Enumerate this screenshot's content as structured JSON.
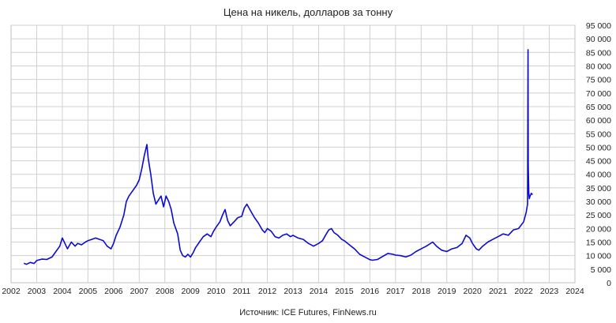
{
  "chart_data": {
    "type": "line",
    "title": "Цена на никель, долларов за тонну",
    "source": "Источник: ICE Futures, FinNews.ru",
    "xlabel": "",
    "ylabel": "",
    "xlim": [
      2002,
      2024
    ],
    "ylim": [
      0,
      95000
    ],
    "grid": true,
    "legend": "none",
    "y_axis_position": "right",
    "line_color": "#0b0bd0",
    "x_ticks": [
      "2002",
      "2003",
      "2004",
      "2005",
      "2006",
      "2007",
      "2008",
      "2009",
      "2010",
      "2011",
      "2012",
      "2013",
      "2014",
      "2015",
      "2016",
      "2017",
      "2018",
      "2019",
      "2020",
      "2021",
      "2022",
      "2023",
      "2024"
    ],
    "y_ticks": [
      "0",
      "5 000",
      "10 000",
      "15 000",
      "20 000",
      "25 000",
      "30 000",
      "35 000",
      "40 000",
      "45 000",
      "50 000",
      "55 000",
      "60 000",
      "65 000",
      "70 000",
      "75 000",
      "80 000",
      "85 000",
      "90 000",
      "95 000"
    ],
    "series": [
      {
        "x": [
          2002.5,
          2002.6,
          2002.75,
          2002.9,
          2003.0,
          2003.2,
          2003.4,
          2003.6,
          2003.75,
          2003.9,
          2004.0,
          2004.1,
          2004.2,
          2004.35,
          2004.5,
          2004.6,
          2004.75,
          2004.9,
          2005.0,
          2005.15,
          2005.3,
          2005.45,
          2005.6,
          2005.75,
          2005.9,
          2006.0,
          2006.1,
          2006.25,
          2006.4,
          2006.5,
          2006.6,
          2006.75,
          2006.9,
          2007.0,
          2007.1,
          2007.2,
          2007.3,
          2007.35,
          2007.45,
          2007.55,
          2007.65,
          2007.75,
          2007.85,
          2007.95,
          2008.05,
          2008.15,
          2008.25,
          2008.35,
          2008.5,
          2008.6,
          2008.7,
          2008.8,
          2008.9,
          2009.0,
          2009.1,
          2009.2,
          2009.35,
          2009.5,
          2009.65,
          2009.8,
          2009.9,
          2010.0,
          2010.15,
          2010.25,
          2010.35,
          2010.45,
          2010.55,
          2010.7,
          2010.85,
          2011.0,
          2011.1,
          2011.2,
          2011.35,
          2011.5,
          2011.65,
          2011.8,
          2011.9,
          2012.0,
          2012.15,
          2012.3,
          2012.45,
          2012.6,
          2012.75,
          2012.9,
          2013.0,
          2013.2,
          2013.4,
          2013.6,
          2013.8,
          2014.0,
          2014.15,
          2014.3,
          2014.4,
          2014.5,
          2014.6,
          2014.75,
          2014.9,
          2015.0,
          2015.2,
          2015.4,
          2015.6,
          2015.8,
          2016.0,
          2016.1,
          2016.3,
          2016.5,
          2016.7,
          2016.9,
          2017.0,
          2017.2,
          2017.4,
          2017.6,
          2017.8,
          2018.0,
          2018.2,
          2018.45,
          2018.6,
          2018.8,
          2019.0,
          2019.2,
          2019.4,
          2019.6,
          2019.75,
          2019.9,
          2020.0,
          2020.15,
          2020.25,
          2020.4,
          2020.6,
          2020.8,
          2021.0,
          2021.2,
          2021.4,
          2021.6,
          2021.8,
          2022.0,
          2022.1,
          2022.15,
          2022.17,
          2022.18,
          2022.2,
          2022.22,
          2022.25,
          2022.3,
          2022.35
        ],
        "y": [
          7200,
          6800,
          7500,
          7100,
          8200,
          8700,
          8600,
          9500,
          11500,
          13500,
          16500,
          14500,
          12500,
          15000,
          13500,
          14500,
          14000,
          15000,
          15500,
          16000,
          16500,
          16000,
          15500,
          13500,
          12500,
          14500,
          17500,
          20500,
          25000,
          30000,
          32000,
          34000,
          36000,
          38000,
          42000,
          47000,
          51000,
          46000,
          40000,
          33000,
          29000,
          30500,
          32000,
          28000,
          32000,
          30000,
          27000,
          22000,
          18000,
          12000,
          10000,
          9500,
          10500,
          9500,
          11000,
          13000,
          15000,
          17000,
          18000,
          17000,
          19000,
          20500,
          22500,
          25000,
          27000,
          23000,
          21000,
          22500,
          24000,
          24500,
          27500,
          29000,
          26500,
          24000,
          22000,
          19500,
          18500,
          20000,
          19000,
          17000,
          16500,
          17500,
          18000,
          17000,
          17500,
          16500,
          16000,
          14500,
          13500,
          14500,
          15500,
          18000,
          19500,
          20000,
          18500,
          17500,
          16000,
          15500,
          14000,
          12500,
          10500,
          9500,
          8500,
          8300,
          8600,
          9700,
          10800,
          10500,
          10200,
          10000,
          9500,
          10200,
          11500,
          12500,
          13500,
          15000,
          13500,
          12000,
          11500,
          12500,
          13000,
          14500,
          17500,
          16500,
          14500,
          12500,
          12000,
          13500,
          15000,
          16000,
          17000,
          18000,
          17500,
          19500,
          20000,
          22500,
          26000,
          29000,
          86000,
          43000,
          33000,
          31000,
          32000,
          33000,
          32500
        ]
      }
    ]
  }
}
